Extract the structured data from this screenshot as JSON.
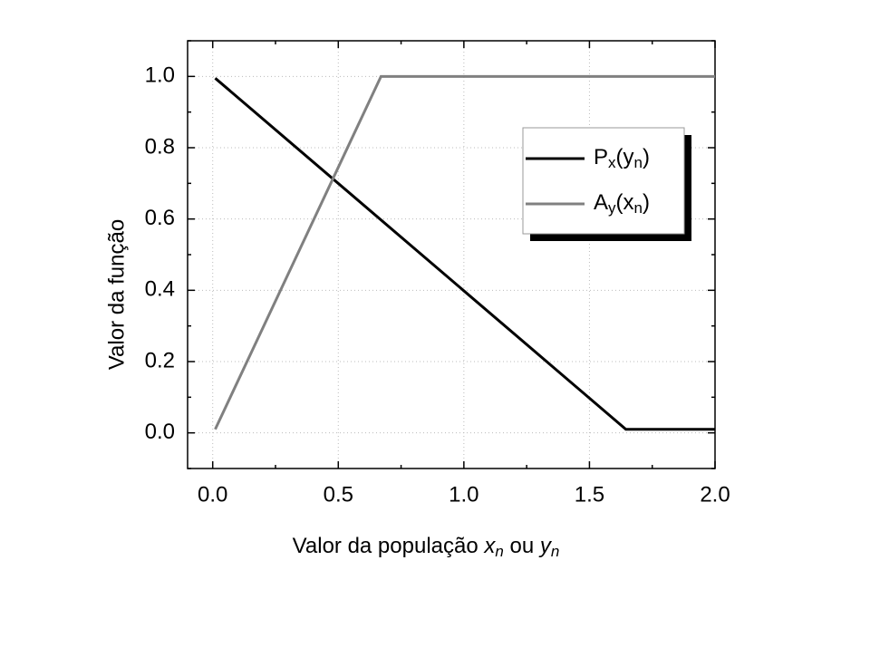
{
  "chart_data": {
    "type": "line",
    "ylabel": "Valor da função",
    "xlabel": [
      {
        "text": "Valor da população "
      },
      {
        "text": "x",
        "italic": true
      },
      {
        "text": "n",
        "italic": true,
        "sub": true
      },
      {
        "text": " ou "
      },
      {
        "text": "y",
        "italic": true
      },
      {
        "text": "n",
        "italic": true,
        "sub": true
      }
    ],
    "xlim": [
      -0.1,
      2.0
    ],
    "ylim": [
      -0.1,
      1.1
    ],
    "xticks": [
      {
        "value": 0,
        "label": "0.0"
      },
      {
        "value": 0.5,
        "label": "0.5"
      },
      {
        "value": 1,
        "label": "1.0"
      },
      {
        "value": 1.5,
        "label": "1.5"
      },
      {
        "value": 2,
        "label": "2.0"
      }
    ],
    "yticks": [
      {
        "value": 0,
        "label": "0.0"
      },
      {
        "value": 0.2,
        "label": "0.2"
      },
      {
        "value": 0.4,
        "label": "0.4"
      },
      {
        "value": 0.6,
        "label": "0.6"
      },
      {
        "value": 0.8,
        "label": "0.8"
      },
      {
        "value": 1,
        "label": "1.0"
      }
    ],
    "xminorticks": [
      0.25,
      0.75,
      1.25,
      1.75
    ],
    "yminorticks": [
      -0.1,
      0.1,
      0.3,
      0.5,
      0.7,
      0.9,
      1.1
    ],
    "grid": true,
    "legend": "upper right",
    "series": [
      {
        "name": [
          {
            "text": "P"
          },
          {
            "text": "x",
            "sub": true
          },
          {
            "text": "(y"
          },
          {
            "text": "n",
            "sub": true
          },
          {
            "text": ")"
          }
        ],
        "color": "#000000",
        "x": [
          0.01,
          1.645,
          2.0
        ],
        "values": [
          0.995,
          0.01,
          0.01
        ]
      },
      {
        "name": [
          {
            "text": "A"
          },
          {
            "text": "y",
            "sub": true
          },
          {
            "text": "(x"
          },
          {
            "text": "n",
            "sub": true
          },
          {
            "text": ")"
          }
        ],
        "color": "#808080",
        "x": [
          0.01,
          0.67,
          2.0
        ],
        "values": [
          0.01,
          1.0,
          1.0
        ]
      }
    ]
  }
}
